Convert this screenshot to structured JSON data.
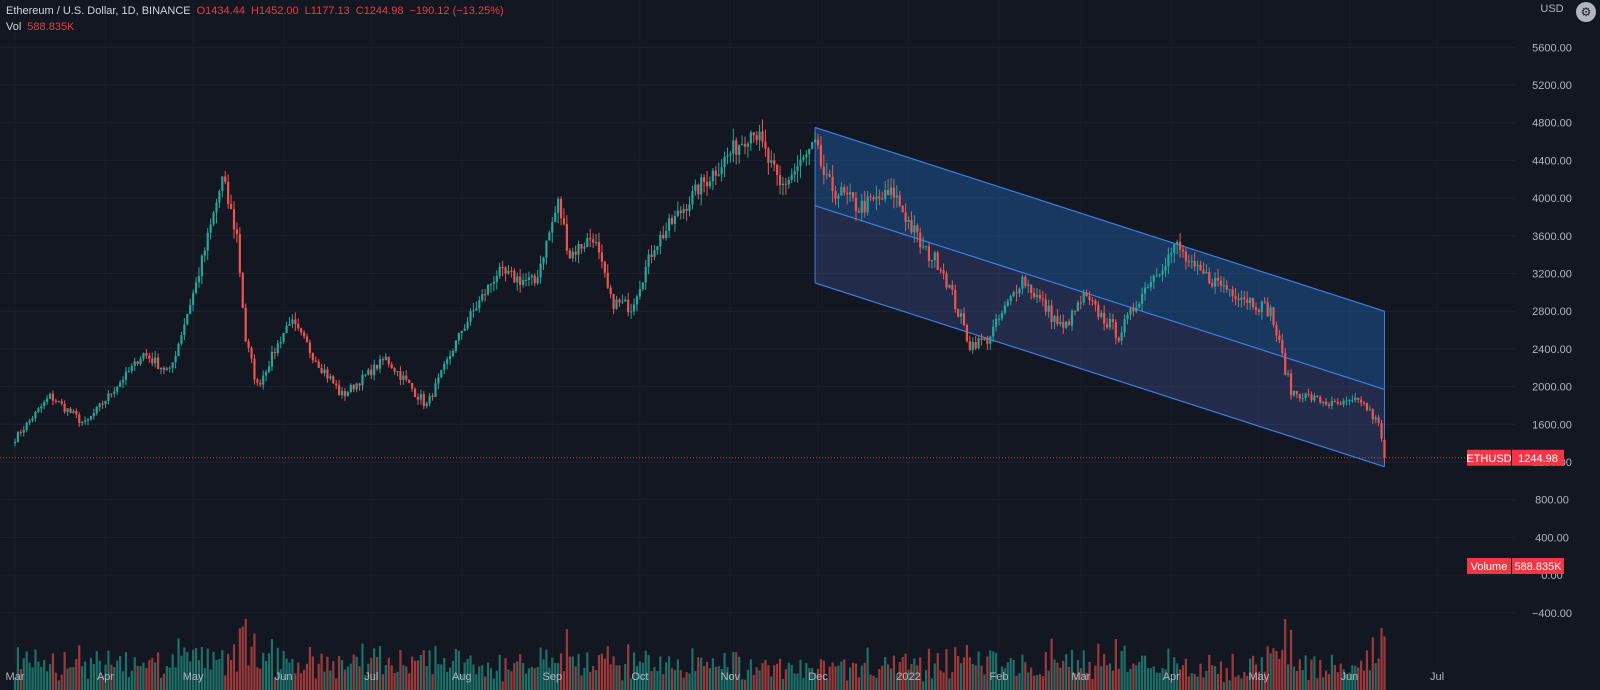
{
  "header": {
    "title": "Ethereum / U.S. Dollar, 1D, BINANCE",
    "ohlc": {
      "o": "O1434.44",
      "h": "H1452.00",
      "l": "L1177.13",
      "c": "C1244.98",
      "chg": "−190.12 (−13.25%)"
    },
    "vol_label": "Vol",
    "vol_value": "588.835K",
    "currency": "USD"
  },
  "price_tag": {
    "symbol": "ETHUSD",
    "value": "1244.98"
  },
  "volume_tag": {
    "label": "Volume",
    "value": "588.835K"
  },
  "colors": {
    "up": "#26a69a",
    "down": "#ef5350",
    "up_vol": "#1e6f68",
    "down_vol": "#9c3a3b",
    "channel": "#2962ff",
    "tag": "#f23645"
  },
  "chart_data": {
    "type": "candlestick",
    "symbol": "ETHUSD",
    "price_axis": {
      "ticks": [
        "5600.00",
        "5200.00",
        "4800.00",
        "4400.00",
        "4000.00",
        "3600.00",
        "3200.00",
        "2800.00",
        "2400.00",
        "2000.00",
        "1600.00",
        "1200.00",
        "800.00",
        "400.00",
        "0.00",
        "−400.00"
      ],
      "values": [
        5600,
        5200,
        4800,
        4400,
        4000,
        3600,
        3200,
        2800,
        2400,
        2000,
        1600,
        1200,
        800,
        400,
        0,
        -400
      ]
    },
    "time_axis": [
      "Mar",
      "Apr",
      "May",
      "Jun",
      "Jul",
      "Aug",
      "Sep",
      "Oct",
      "Nov",
      "Dec",
      "2022",
      "Feb",
      "Mar",
      "Apr",
      "May",
      "Jun",
      "Jul"
    ],
    "anchors": [
      {
        "d": "2021-03-01",
        "v": 1450
      },
      {
        "d": "2021-03-13",
        "v": 1900
      },
      {
        "d": "2021-03-25",
        "v": 1600
      },
      {
        "d": "2021-04-14",
        "v": 2350
      },
      {
        "d": "2021-04-23",
        "v": 2150
      },
      {
        "d": "2021-05-03",
        "v": 3200
      },
      {
        "d": "2021-05-11",
        "v": 4200
      },
      {
        "d": "2021-05-16",
        "v": 3600
      },
      {
        "d": "2021-05-19",
        "v": 2500
      },
      {
        "d": "2021-05-23",
        "v": 2000
      },
      {
        "d": "2021-06-03",
        "v": 2700
      },
      {
        "d": "2021-06-21",
        "v": 1900
      },
      {
        "d": "2021-07-06",
        "v": 2300
      },
      {
        "d": "2021-07-20",
        "v": 1800
      },
      {
        "d": "2021-08-01",
        "v": 2600
      },
      {
        "d": "2021-08-13",
        "v": 3200
      },
      {
        "d": "2021-08-26",
        "v": 3100
      },
      {
        "d": "2021-09-03",
        "v": 3950
      },
      {
        "d": "2021-09-07",
        "v": 3400
      },
      {
        "d": "2021-09-15",
        "v": 3600
      },
      {
        "d": "2021-09-21",
        "v": 2900
      },
      {
        "d": "2021-09-28",
        "v": 2850
      },
      {
        "d": "2021-10-06",
        "v": 3500
      },
      {
        "d": "2021-10-21",
        "v": 4100
      },
      {
        "d": "2021-11-09",
        "v": 4750
      },
      {
        "d": "2021-11-18",
        "v": 4100
      },
      {
        "d": "2021-11-30",
        "v": 4550
      },
      {
        "d": "2021-12-04",
        "v": 4150
      },
      {
        "d": "2021-12-15",
        "v": 3900
      },
      {
        "d": "2021-12-27",
        "v": 4050
      },
      {
        "d": "2022-01-06",
        "v": 3450
      },
      {
        "d": "2022-01-12",
        "v": 3300
      },
      {
        "d": "2022-01-22",
        "v": 2450
      },
      {
        "d": "2022-01-28",
        "v": 2500
      },
      {
        "d": "2022-02-09",
        "v": 3150
      },
      {
        "d": "2022-02-23",
        "v": 2600
      },
      {
        "d": "2022-03-02",
        "v": 2950
      },
      {
        "d": "2022-03-14",
        "v": 2550
      },
      {
        "d": "2022-03-24",
        "v": 3100
      },
      {
        "d": "2022-04-03",
        "v": 3500
      },
      {
        "d": "2022-04-08",
        "v": 3250
      },
      {
        "d": "2022-04-20",
        "v": 3050
      },
      {
        "d": "2022-05-05",
        "v": 2800
      },
      {
        "d": "2022-05-12",
        "v": 1950
      },
      {
        "d": "2022-05-27",
        "v": 1800
      },
      {
        "d": "2022-06-05",
        "v": 1850
      },
      {
        "d": "2022-06-11",
        "v": 1600
      },
      {
        "d": "2022-06-13",
        "v": 1245
      }
    ],
    "last": {
      "open": 1434.44,
      "high": 1452.0,
      "low": 1177.13,
      "close": 1244.98,
      "volume": 588835
    },
    "channel": {
      "top": [
        {
          "d": "2021-11-30",
          "v": 4750
        },
        {
          "d": "2022-06-13",
          "v": 2800
        }
      ],
      "middle": [
        {
          "d": "2021-11-30",
          "v": 3920
        },
        {
          "d": "2022-06-13",
          "v": 1970
        }
      ],
      "bottom": [
        {
          "d": "2021-11-30",
          "v": 3100
        },
        {
          "d": "2022-06-13",
          "v": 1150
        }
      ]
    }
  }
}
